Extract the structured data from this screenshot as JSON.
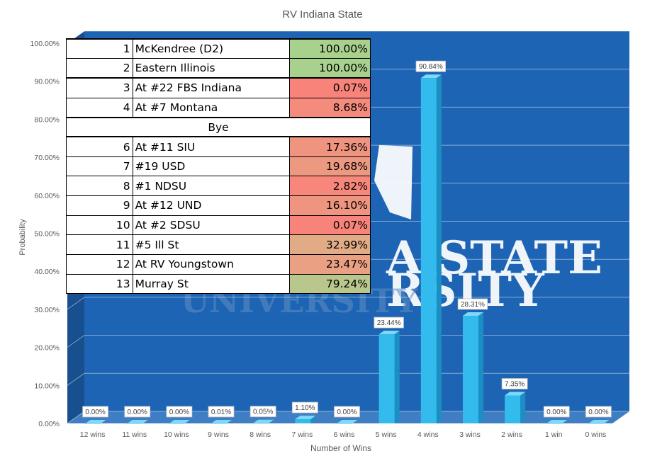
{
  "chart_data": {
    "type": "bar",
    "title": "RV Indiana State",
    "xlabel": "Number of Wins",
    "ylabel": "Probability",
    "ylim": [
      0,
      1
    ],
    "y_ticks": [
      "0.00%",
      "10.00%",
      "20.00%",
      "30.00%",
      "40.00%",
      "50.00%",
      "60.00%",
      "70.00%",
      "80.00%",
      "90.00%",
      "100.00%"
    ],
    "categories": [
      "12 wins",
      "11 wins",
      "10 wins",
      "9 wins",
      "8 wins",
      "7 wins",
      "6 wins",
      "5 wins",
      "4 wins",
      "3 wins",
      "2 wins",
      "1 win",
      "0 wins"
    ],
    "values": [
      0.0,
      0.0,
      0.0,
      0.0001,
      0.0005,
      0.011,
      0.0,
      0.2344,
      0.9084,
      0.2831,
      0.0735,
      0.0,
      0.0
    ],
    "data_labels": [
      "0.00%",
      "0.00%",
      "0.00%",
      "0.01%",
      "0.05%",
      "1.10%",
      "0.00%",
      "23.44%",
      "90.84%",
      "28.31%",
      "7.35%",
      "0.00%",
      "0.00%"
    ],
    "grid": true,
    "background_color": "#1e64b4",
    "bar_color": "#33bbee",
    "watermark_text": [
      "A STATE",
      "RSITY",
      "UNIVERSITY"
    ]
  },
  "schedule": [
    {
      "num": "1",
      "opponent": "McKendree (D2)",
      "prob": "100.00%",
      "color": "#a9d18e"
    },
    {
      "num": "2",
      "opponent": "Eastern Illinois",
      "prob": "100.00%",
      "color": "#a9d18e"
    },
    {
      "num": "3",
      "opponent": "At #22 FBS Indiana",
      "prob": "0.07%",
      "color": "#f8837a"
    },
    {
      "num": "4",
      "opponent": "At #7 Montana",
      "prob": "8.68%",
      "color": "#f58b7d"
    },
    {
      "bye": true,
      "label": "Bye"
    },
    {
      "num": "6",
      "opponent": "At #11 SIU",
      "prob": "17.36%",
      "color": "#ef957f"
    },
    {
      "num": "7",
      "opponent": "#19 USD",
      "prob": "19.68%",
      "color": "#ed9880"
    },
    {
      "num": "8",
      "opponent": "#1 NDSU",
      "prob": "2.82%",
      "color": "#f7867b"
    },
    {
      "num": "9",
      "opponent": "At #12 UND",
      "prob": "16.10%",
      "color": "#ef947f"
    },
    {
      "num": "10",
      "opponent": "At #2 SDSU",
      "prob": "0.07%",
      "color": "#f8837a"
    },
    {
      "num": "11",
      "opponent": "#5 Ill St",
      "prob": "32.99%",
      "color": "#e1ab86"
    },
    {
      "num": "12",
      "opponent": "At RV Youngstown",
      "prob": "23.47%",
      "color": "#eaa082"
    },
    {
      "num": "13",
      "opponent": "Murray St",
      "prob": "79.24%",
      "color": "#b9c68c"
    }
  ]
}
